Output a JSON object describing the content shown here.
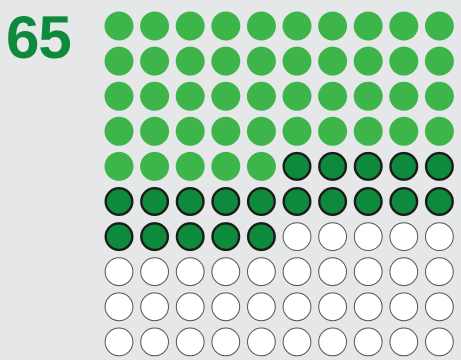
{
  "headline": {
    "value": "65"
  },
  "colors": {
    "background": "#e6e7e8",
    "headline": "#0d8a3b",
    "light_green": "#3db54a",
    "dark_green": "#0d8a3b",
    "dark_outline": "#1b1b1b",
    "empty_outline": "#555555",
    "empty_fill": "#ffffff"
  },
  "chart_data": {
    "type": "waffle",
    "rows": 10,
    "columns": 10,
    "total": 100,
    "segments": [
      {
        "kind": "light-green",
        "count": 45
      },
      {
        "kind": "dark-green",
        "count": 20
      },
      {
        "kind": "empty",
        "count": 35
      }
    ],
    "filled_total": 65
  }
}
